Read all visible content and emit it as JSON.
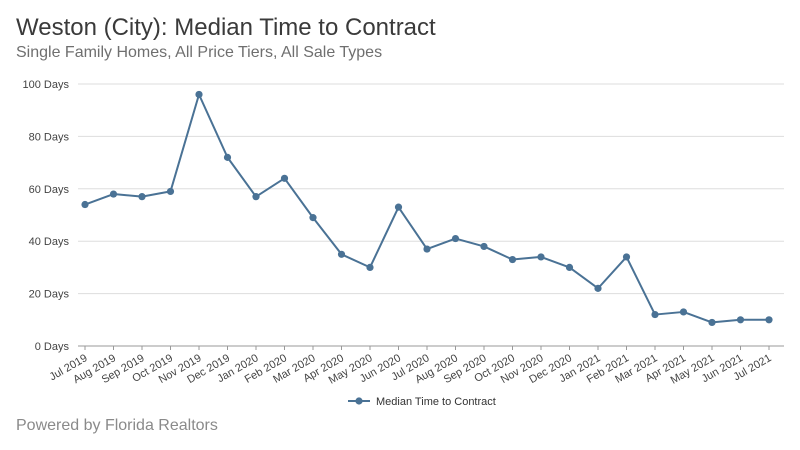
{
  "header": {
    "title": "Weston (City): Median Time to Contract",
    "subtitle": "Single Family Homes, All Price Tiers, All Sale Types"
  },
  "footer": {
    "text": "Powered by Florida Realtors"
  },
  "colors": {
    "series": "#4a7295",
    "grid": "#dddddd",
    "axis": "#999999"
  },
  "chart_data": {
    "type": "line",
    "title": "Weston (City): Median Time to Contract",
    "subtitle": "Single Family Homes, All Price Tiers, All Sale Types",
    "xlabel": "",
    "ylabel": "",
    "ylim": [
      0,
      100
    ],
    "y_ticks": [
      0,
      20,
      40,
      60,
      80,
      100
    ],
    "y_tick_labels": [
      "0 Days",
      "20 Days",
      "40 Days",
      "60 Days",
      "80 Days",
      "100 Days"
    ],
    "grid": true,
    "legend": "bottom-center",
    "categories": [
      "Jul 2019",
      "Aug 2019",
      "Sep 2019",
      "Oct 2019",
      "Nov 2019",
      "Dec 2019",
      "Jan 2020",
      "Feb 2020",
      "Mar 2020",
      "Apr 2020",
      "May 2020",
      "Jun 2020",
      "Jul 2020",
      "Aug 2020",
      "Sep 2020",
      "Oct 2020",
      "Nov 2020",
      "Dec 2020",
      "Jan 2021",
      "Feb 2021",
      "Mar 2021",
      "Apr 2021",
      "May 2021",
      "Jun 2021",
      "Jul 2021"
    ],
    "series": [
      {
        "name": "Median Time to Contract",
        "values": [
          54,
          58,
          57,
          59,
          96,
          72,
          57,
          64,
          49,
          35,
          30,
          53,
          37,
          41,
          38,
          33,
          34,
          30,
          22,
          34,
          12,
          13,
          9,
          10,
          10
        ]
      }
    ]
  }
}
